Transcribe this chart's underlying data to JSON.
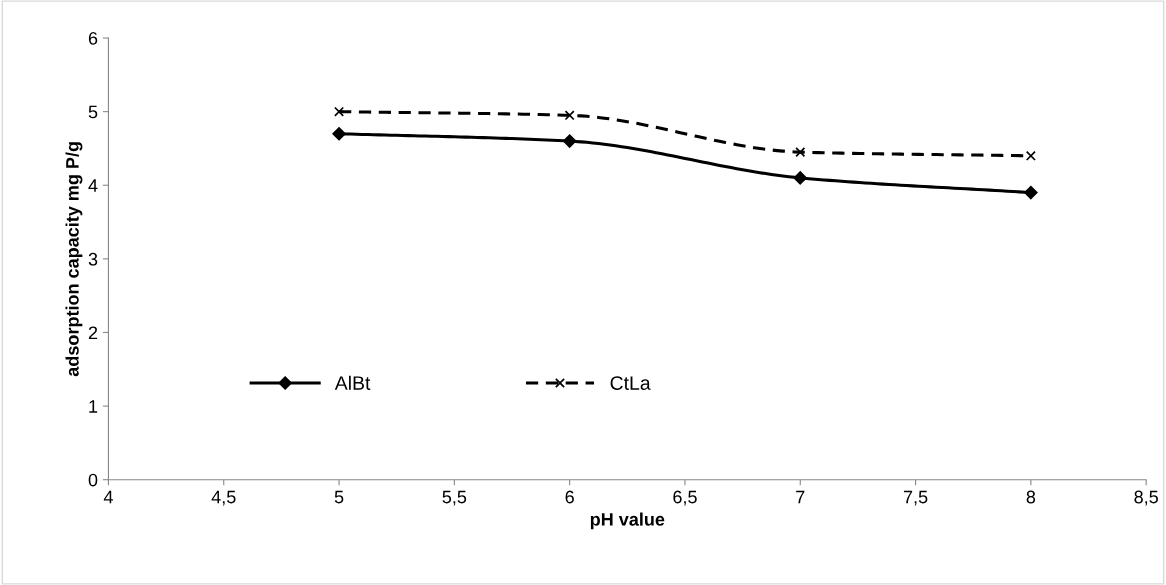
{
  "chart_data": {
    "type": "line",
    "xlabel": "pH value",
    "ylabel": "adsorption capacity mg P/g",
    "x": [
      5,
      6,
      7,
      8
    ],
    "series": [
      {
        "name": "AlBt",
        "color": "#000000",
        "values": [
          4.7,
          4.6,
          4.1,
          3.9
        ],
        "marker": "diamond",
        "line_style": "solid"
      },
      {
        "name": "CtLa",
        "color": "#000000",
        "values": [
          5.0,
          4.95,
          4.45,
          4.4
        ],
        "marker": "cross",
        "line_style": "dashed"
      }
    ],
    "xlim": [
      4,
      8.5
    ],
    "xticks": [
      4,
      {
        "value": 4.5,
        "label": "4,5"
      },
      5,
      {
        "value": 5.5,
        "label": "5,5"
      },
      6,
      {
        "value": 6.5,
        "label": "6,5"
      },
      7,
      {
        "value": 7.5,
        "label": "7,5"
      },
      8,
      {
        "value": 8.5,
        "label": "8,5"
      }
    ],
    "ylim": [
      0,
      6
    ],
    "yticks": [
      0,
      1,
      2,
      3,
      4,
      5,
      6
    ],
    "grid": false,
    "legend": "bottom left"
  }
}
